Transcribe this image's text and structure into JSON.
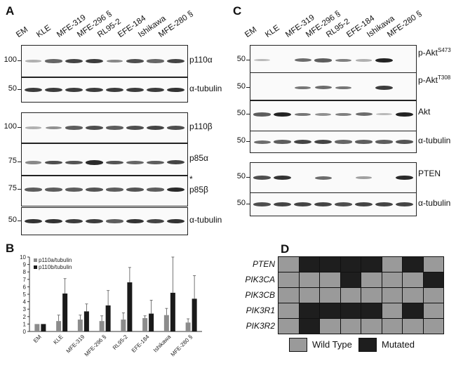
{
  "panels": {
    "A": "A",
    "B": "B",
    "C": "C",
    "D": "D"
  },
  "lanes_A": [
    "EM",
    "KLE",
    "MFE-319",
    "MFE-296 §",
    "RL95-2",
    "EFE-184",
    "Ishikawa",
    "MFE-280 §"
  ],
  "lanes_C": [
    "EM",
    "KLE",
    "MFE-319",
    "MFE-296 §",
    "RL95-2",
    "EFE-184",
    "Ishikawa",
    "MFE-280 §"
  ],
  "blots_A": [
    {
      "label": "p110α",
      "mw": "100",
      "bands": [
        0.1,
        0.55,
        0.75,
        0.8,
        0.35,
        0.7,
        0.55,
        0.75
      ]
    },
    {
      "label": "α-tubulin",
      "mw": "50",
      "bands": [
        0.8,
        0.8,
        0.8,
        0.8,
        0.8,
        0.8,
        0.8,
        0.85
      ]
    },
    {
      "label": "p110β",
      "mw": "100",
      "bands": [
        0.1,
        0.3,
        0.6,
        0.7,
        0.6,
        0.7,
        0.75,
        0.7
      ]
    },
    {
      "label": "p85α",
      "mw": "75",
      "bands": [
        0.35,
        0.7,
        0.65,
        0.9,
        0.65,
        0.55,
        0.6,
        0.75
      ]
    },
    {
      "label": "p85β",
      "mw": "75",
      "bands": [
        0.6,
        0.6,
        0.6,
        0.65,
        0.6,
        0.65,
        0.6,
        0.9
      ],
      "star": "*"
    },
    {
      "label": "α-tubulin",
      "mw": "50",
      "bands": [
        0.85,
        0.85,
        0.8,
        0.8,
        0.6,
        0.85,
        0.75,
        0.85
      ]
    }
  ],
  "blots_C": [
    {
      "label": "p-Akt",
      "sup": "S473",
      "mw": "50",
      "bands": [
        0.05,
        0.0,
        0.5,
        0.6,
        0.4,
        0.1,
        0.95,
        0.0
      ]
    },
    {
      "label": "p-Akt",
      "sup": "T308",
      "mw": "50",
      "bands": [
        0.0,
        0.0,
        0.45,
        0.5,
        0.45,
        0.0,
        0.8,
        0.0
      ]
    },
    {
      "label": "Akt",
      "mw": "50",
      "bands": [
        0.6,
        0.95,
        0.45,
        0.3,
        0.4,
        0.5,
        0.05,
        0.95
      ]
    },
    {
      "label": "α-tubulin",
      "mw": "50",
      "bands": [
        0.5,
        0.6,
        0.75,
        0.75,
        0.55,
        0.6,
        0.6,
        0.65
      ]
    },
    {
      "label": "PTEN",
      "mw": "50",
      "bands": [
        0.7,
        0.85,
        0.0,
        0.5,
        0.0,
        0.2,
        0.0,
        0.9
      ]
    },
    {
      "label": "α-tubulin",
      "mw": "50",
      "bands": [
        0.7,
        0.75,
        0.75,
        0.75,
        0.7,
        0.75,
        0.75,
        0.75
      ]
    }
  ],
  "chart_data": {
    "type": "bar",
    "categories": [
      "EM",
      "KLE",
      "MFE-319",
      "MFE-296 §",
      "RL95-2",
      "EFE-184",
      "Ishikawa",
      "MFE-280 §"
    ],
    "series": [
      {
        "name": "p110a/tubulin",
        "color": "#8c8c8c",
        "values": [
          1.0,
          1.4,
          1.6,
          1.4,
          1.6,
          1.8,
          2.2,
          1.2
        ],
        "errors": [
          0.0,
          0.8,
          0.6,
          0.7,
          0.9,
          0.3,
          0.9,
          0.5
        ]
      },
      {
        "name": "p110b/tubulin",
        "color": "#1a1a1a",
        "values": [
          1.0,
          5.1,
          2.7,
          3.5,
          6.6,
          2.4,
          5.2,
          4.4
        ],
        "errors": [
          0.0,
          2.0,
          1.0,
          2.0,
          2.0,
          1.8,
          4.8,
          3.1
        ]
      }
    ],
    "ylim": [
      0,
      10
    ],
    "yticks": [
      0,
      1,
      2,
      3,
      4,
      5,
      6,
      7,
      8,
      9,
      10
    ],
    "legend": "top-left"
  },
  "mutation_grid": {
    "genes": [
      "PTEN",
      "PIK3CA",
      "PIK3CB",
      "PIK3R1",
      "PIK3R2"
    ],
    "matrix": [
      [
        0,
        1,
        1,
        1,
        1,
        0,
        1,
        0
      ],
      [
        0,
        0,
        0,
        1,
        0,
        0,
        0,
        1
      ],
      [
        0,
        0,
        0,
        0,
        0,
        0,
        0,
        0
      ],
      [
        0,
        1,
        1,
        1,
        1,
        0,
        1,
        0
      ],
      [
        0,
        1,
        0,
        0,
        0,
        0,
        0,
        0
      ]
    ],
    "wild_color": "#9a9a9a",
    "mutated_color": "#1e1e1e",
    "legend_wild": "Wild Type",
    "legend_mutated": "Mutated"
  }
}
